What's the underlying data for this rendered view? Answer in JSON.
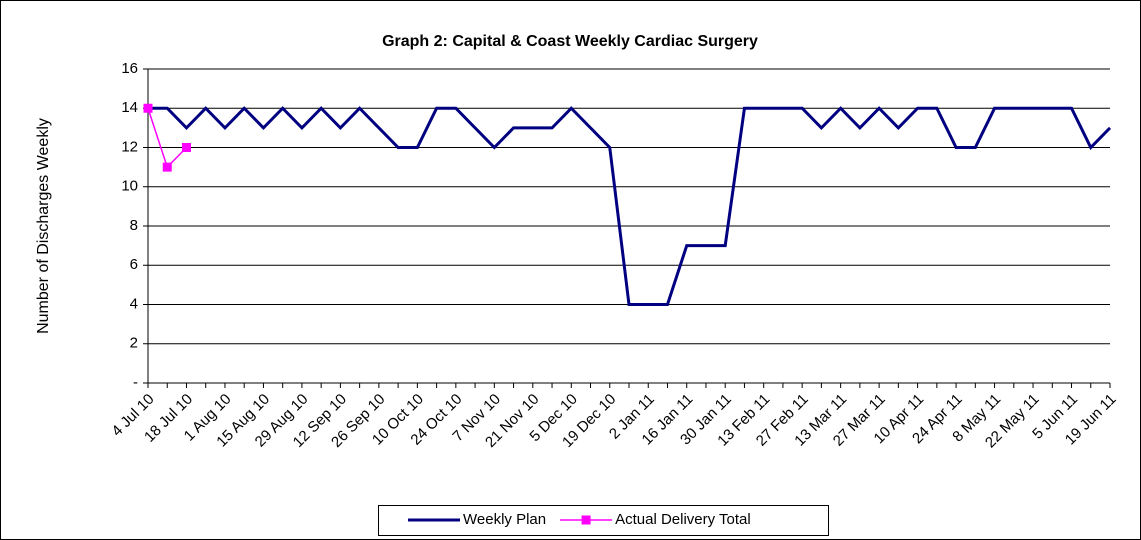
{
  "chart_data": {
    "type": "line",
    "title": "Graph 2: Capital & Coast Weekly Cardiac Surgery",
    "y_label": "Number of Discharges Weekly",
    "categories": [
      "4 Jul 10",
      null,
      "18 Jul 10",
      null,
      "1 Aug 10",
      null,
      "15 Aug 10",
      null,
      "29 Aug 10",
      null,
      "12 Sep 10",
      null,
      "26 Sep 10",
      null,
      "10 Oct 10",
      null,
      "24 Oct 10",
      null,
      "7 Nov 10",
      null,
      "21 Nov 10",
      null,
      "5 Dec 10",
      null,
      "19 Dec 10",
      null,
      "2 Jan 11",
      null,
      "16 Jan 11",
      null,
      "30 Jan 11",
      null,
      "13 Feb 11",
      null,
      "27 Feb 11",
      null,
      "13 Mar 11",
      null,
      "27 Mar 11",
      null,
      "10 Apr 11",
      null,
      "24 Apr 11",
      null,
      "8 May 11",
      null,
      "22 May 11",
      null,
      "5 Jun 11",
      null,
      "19 Jun 11"
    ],
    "series": [
      {
        "name": "Weekly Plan",
        "color": "#000080",
        "marker": "none",
        "values": [
          14,
          14,
          13,
          14,
          13,
          14,
          13,
          14,
          13,
          14,
          13,
          14,
          13,
          12,
          12,
          14,
          14,
          13,
          12,
          13,
          13,
          13,
          14,
          13,
          12,
          4,
          4,
          4,
          7,
          7,
          7,
          14,
          14,
          14,
          14,
          13,
          14,
          13,
          14,
          13,
          14,
          14,
          12,
          12,
          14,
          14,
          14,
          14,
          14,
          12,
          13
        ]
      },
      {
        "name": "Actual Delivery Total",
        "color": "#ff00ff",
        "marker": "square",
        "values": [
          14,
          11,
          12,
          null,
          null,
          null,
          null,
          null,
          null,
          null,
          null,
          null,
          null,
          null,
          null,
          null,
          null,
          null,
          null,
          null,
          null,
          null,
          null,
          null,
          null,
          null,
          null,
          null,
          null,
          null,
          null,
          null,
          null,
          null,
          null,
          null,
          null,
          null,
          null,
          null,
          null,
          null,
          null,
          null,
          null,
          null,
          null,
          null,
          null,
          null,
          null
        ]
      }
    ],
    "ylim": [
      0,
      16
    ],
    "yticks": [
      {
        "value": 0,
        "label": "-"
      },
      2,
      4,
      6,
      8,
      10,
      12,
      14,
      16
    ],
    "grid": true,
    "legend": "bottom"
  }
}
